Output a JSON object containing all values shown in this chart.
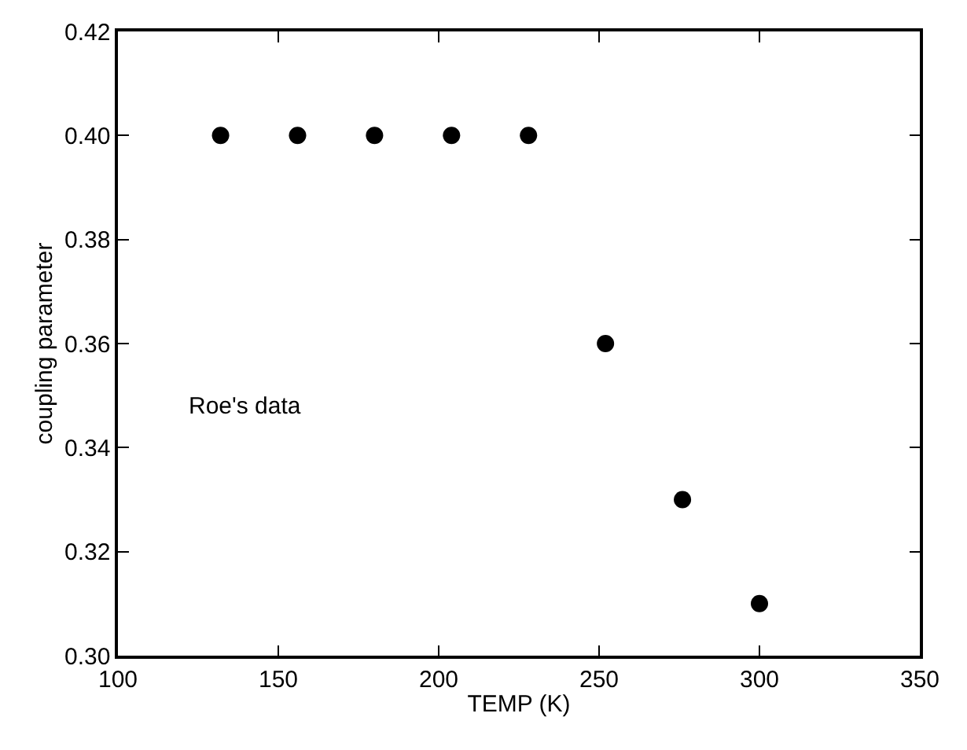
{
  "chart_data": {
    "type": "scatter",
    "xlabel": "TEMP (K)",
    "ylabel": "coupling parameter",
    "x": [
      132,
      156,
      180,
      204,
      228,
      252,
      276,
      300
    ],
    "values": [
      0.4,
      0.4,
      0.4,
      0.4,
      0.4,
      0.36,
      0.33,
      0.31
    ],
    "color": "#000000",
    "marker": "circle",
    "annotations": [
      "Roe's data"
    ],
    "xlim": [
      100,
      350
    ],
    "xticks": [
      100,
      150,
      200,
      250,
      300,
      350
    ],
    "ylim": [
      0.3,
      0.42
    ],
    "yticks": [
      {
        "value": 0.3,
        "label": "0.30"
      },
      {
        "value": 0.32,
        "label": "0.32"
      },
      {
        "value": 0.34,
        "label": "0.34"
      },
      {
        "value": 0.36,
        "label": "0.36"
      },
      {
        "value": 0.38,
        "label": "0.38"
      },
      {
        "value": 0.4,
        "label": "0.40"
      },
      {
        "value": 0.42,
        "label": "0.42"
      }
    ],
    "legend": false
  }
}
